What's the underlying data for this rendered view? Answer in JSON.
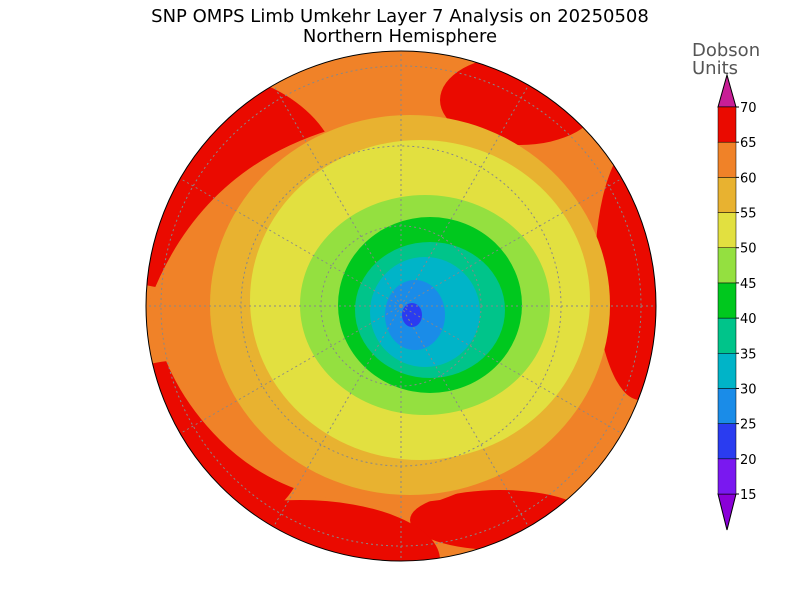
{
  "title": "SNP OMPS Limb Umkehr Layer 7 Analysis on 20250508",
  "subtitle": "Northern Hemisphere",
  "colorbar": {
    "label": [
      "Dobson",
      "Units"
    ],
    "ticks": [
      15,
      20,
      25,
      30,
      35,
      40,
      45,
      50,
      55,
      60,
      65,
      70
    ],
    "colors": [
      "#8a00d8",
      "#7a18f0",
      "#2a3cf0",
      "#1a8ce8",
      "#00b4c8",
      "#00c48a",
      "#00c81e",
      "#94e040",
      "#e2e040",
      "#e8b230",
      "#f08228",
      "#ea0a00",
      "#c81e96"
    ]
  }
}
